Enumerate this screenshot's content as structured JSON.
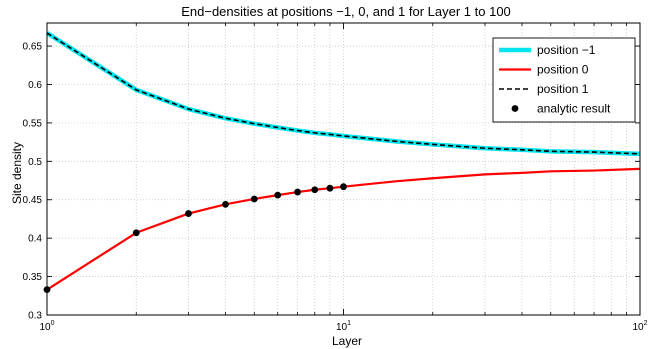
{
  "chart_data": {
    "type": "line",
    "title": "End−densities at positions −1, 0, and 1 for Layer 1 to 100",
    "xlabel": "Layer",
    "ylabel": "Site density",
    "xscale": "log",
    "xlim": [
      1,
      100
    ],
    "ylim": [
      0.3,
      0.68
    ],
    "grid": true,
    "legend_position": "top-right",
    "x_ticks": [
      {
        "value": 1,
        "base": "10",
        "exp": "0"
      },
      {
        "value": 10,
        "base": "10",
        "exp": "1"
      },
      {
        "value": 100,
        "base": "10",
        "exp": "2"
      }
    ],
    "y_ticks": [
      0.3,
      0.35,
      0.4,
      0.45,
      0.5,
      0.55,
      0.6,
      0.65
    ],
    "y_tick_labels": [
      "0.3",
      "0.35",
      "0.4",
      "0.45",
      "0.5",
      "0.55",
      "0.6",
      "0.65"
    ],
    "series": [
      {
        "name": "position −1",
        "color": "#00e5ee",
        "style": "solid-thick",
        "x": [
          1,
          2,
          3,
          4,
          5,
          6,
          7,
          8,
          9,
          10,
          15,
          20,
          30,
          40,
          50,
          70,
          100
        ],
        "y": [
          0.667,
          0.593,
          0.568,
          0.556,
          0.549,
          0.544,
          0.54,
          0.537,
          0.535,
          0.533,
          0.526,
          0.522,
          0.517,
          0.515,
          0.513,
          0.512,
          0.5097
        ]
      },
      {
        "name": "position 0",
        "color": "#ff0000",
        "style": "solid",
        "x": [
          1,
          2,
          3,
          4,
          5,
          6,
          7,
          8,
          9,
          10,
          15,
          20,
          30,
          40,
          50,
          70,
          100
        ],
        "y": [
          0.333,
          0.407,
          0.432,
          0.444,
          0.451,
          0.456,
          0.46,
          0.463,
          0.465,
          0.467,
          0.474,
          0.478,
          0.483,
          0.485,
          0.487,
          0.488,
          0.4902
        ]
      },
      {
        "name": "position 1",
        "color": "#000000",
        "style": "dashed",
        "x": [
          1,
          2,
          3,
          4,
          5,
          6,
          7,
          8,
          9,
          10,
          15,
          20,
          30,
          40,
          50,
          70,
          100
        ],
        "y": [
          0.667,
          0.593,
          0.568,
          0.556,
          0.549,
          0.544,
          0.54,
          0.537,
          0.535,
          0.533,
          0.526,
          0.522,
          0.517,
          0.515,
          0.513,
          0.512,
          0.5097
        ]
      },
      {
        "name": "analytic result",
        "color": "#000000",
        "style": "markers",
        "x": [
          1,
          2,
          3,
          4,
          5,
          6,
          7,
          8,
          9,
          10
        ],
        "y": [
          0.333,
          0.407,
          0.432,
          0.444,
          0.451,
          0.456,
          0.46,
          0.463,
          0.465,
          0.467
        ]
      }
    ]
  }
}
